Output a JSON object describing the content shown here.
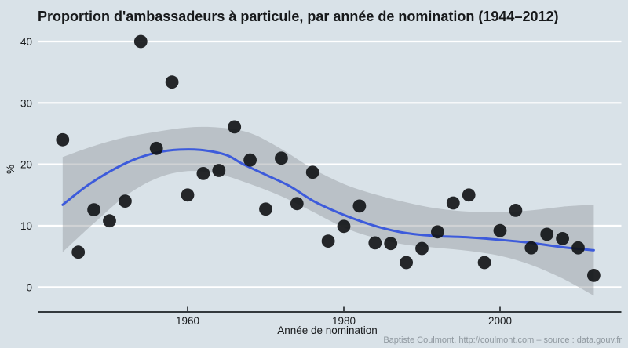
{
  "header": {
    "title": "Proportion d'ambassadeurs à particule, par année de nomination (1944–2012)"
  },
  "footer": {
    "caption": "Baptiste Coulmont. http://coulmont.com – source : data.gouv.fr"
  },
  "chart_data": {
    "type": "scatter",
    "title": "Proportion d'ambassadeurs à particule, par année de nomination (1944–2012)",
    "xlabel": "Année de nomination",
    "ylabel": "%",
    "x_ticks": [
      1960,
      1980,
      2000
    ],
    "y_ticks": [
      0,
      10,
      20,
      30,
      40
    ],
    "xlim": [
      1942.5,
      2013.5
    ],
    "ylim": [
      0,
      41
    ],
    "grid": "horizontal white major gridlines on light blue-gray panel",
    "legend_position": "none",
    "points": [
      [
        1944,
        24.0
      ],
      [
        1946,
        5.7
      ],
      [
        1948,
        12.6
      ],
      [
        1950,
        10.8
      ],
      [
        1952,
        14.0
      ],
      [
        1954,
        40.0
      ],
      [
        1956,
        22.6
      ],
      [
        1958,
        33.4
      ],
      [
        1960,
        15.0
      ],
      [
        1962,
        18.5
      ],
      [
        1964,
        19.0
      ],
      [
        1966,
        26.1
      ],
      [
        1968,
        20.7
      ],
      [
        1970,
        12.7
      ],
      [
        1972,
        21.0
      ],
      [
        1974,
        13.6
      ],
      [
        1976,
        18.7
      ],
      [
        1978,
        7.5
      ],
      [
        1980,
        9.9
      ],
      [
        1982,
        13.2
      ],
      [
        1984,
        7.2
      ],
      [
        1986,
        7.1
      ],
      [
        1988,
        4.0
      ],
      [
        1990,
        6.3
      ],
      [
        1992,
        9.0
      ],
      [
        1994,
        13.7
      ],
      [
        1996,
        15.0
      ],
      [
        1998,
        4.0
      ],
      [
        2000,
        9.2
      ],
      [
        2002,
        12.5
      ],
      [
        2004,
        6.4
      ],
      [
        2006,
        8.6
      ],
      [
        2008,
        7.9
      ],
      [
        2010,
        6.4
      ],
      [
        2012,
        1.9
      ]
    ],
    "smooth_line": {
      "name": "loess-trend",
      "points": [
        [
          1944,
          13.4
        ],
        [
          1947,
          16.4
        ],
        [
          1950,
          18.8
        ],
        [
          1953,
          20.7
        ],
        [
          1956,
          21.9
        ],
        [
          1959,
          22.4
        ],
        [
          1962,
          22.3
        ],
        [
          1965,
          21.5
        ],
        [
          1967,
          20.1
        ],
        [
          1970,
          18.3
        ],
        [
          1973,
          16.5
        ],
        [
          1976,
          14.1
        ],
        [
          1979,
          12.3
        ],
        [
          1982,
          10.8
        ],
        [
          1985,
          9.6
        ],
        [
          1988,
          8.8
        ],
        [
          1992,
          8.3
        ],
        [
          1996,
          8.1
        ],
        [
          2000,
          7.7
        ],
        [
          2004,
          7.2
        ],
        [
          2008,
          6.5
        ],
        [
          2012,
          6.0
        ]
      ]
    },
    "confidence_band": {
      "upper": [
        [
          1944,
          21.2
        ],
        [
          1948,
          23.0
        ],
        [
          1952,
          24.4
        ],
        [
          1956,
          25.3
        ],
        [
          1960,
          26.0
        ],
        [
          1964,
          26.0
        ],
        [
          1968,
          25.1
        ],
        [
          1972,
          22.5
        ],
        [
          1976,
          19.3
        ],
        [
          1980,
          16.8
        ],
        [
          1984,
          15.1
        ],
        [
          1988,
          13.8
        ],
        [
          1992,
          12.8
        ],
        [
          1996,
          12.3
        ],
        [
          2000,
          12.2
        ],
        [
          2004,
          12.5
        ],
        [
          2008,
          13.1
        ],
        [
          2012,
          13.4
        ]
      ],
      "lower": [
        [
          1944,
          5.7
        ],
        [
          1948,
          10.4
        ],
        [
          1952,
          14.8
        ],
        [
          1956,
          17.7
        ],
        [
          1960,
          18.9
        ],
        [
          1964,
          18.4
        ],
        [
          1968,
          16.8
        ],
        [
          1972,
          14.8
        ],
        [
          1976,
          12.3
        ],
        [
          1980,
          9.7
        ],
        [
          1984,
          8.0
        ],
        [
          1988,
          6.9
        ],
        [
          1992,
          6.4
        ],
        [
          1996,
          5.9
        ],
        [
          2000,
          5.1
        ],
        [
          2004,
          3.6
        ],
        [
          2008,
          1.4
        ],
        [
          2012,
          -1.4
        ]
      ]
    },
    "colors": {
      "background": "#d9e2e8",
      "gridline": "#ffffff",
      "point": "#101214",
      "line": "#3d5bdb",
      "band": "rgba(144,148,152,0.42)",
      "axis_line": "#33393d",
      "caption": "#8f989f"
    }
  }
}
